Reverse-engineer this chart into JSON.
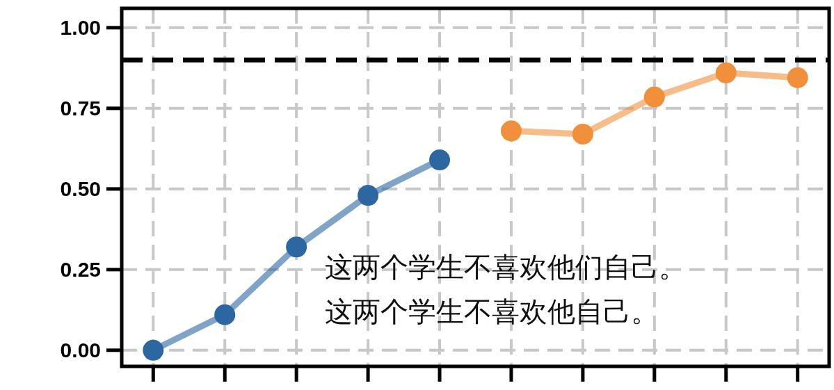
{
  "chart_data": {
    "type": "line",
    "categories": [
      null,
      null,
      null,
      null,
      null,
      null,
      null,
      null,
      null,
      null
    ],
    "series": [
      {
        "color": "#2c67a2",
        "values": [
          0,
          0.11,
          0.32,
          0.48,
          0.59,
          null,
          null,
          null,
          null,
          null
        ]
      },
      {
        "color": "#f0903a",
        "values": [
          null,
          null,
          null,
          null,
          null,
          0.68,
          0.67,
          0.785,
          0.86,
          0.845
        ]
      }
    ],
    "ylim": [
      -0.05,
      1.06
    ],
    "yticks": [
      {
        "value": 0,
        "label": "0.00"
      },
      {
        "value": 0.25,
        "label": "0.25"
      },
      {
        "value": 0.5,
        "label": "0.50"
      },
      {
        "value": 0.75,
        "label": "0.75"
      },
      {
        "value": 1,
        "label": "1.00"
      }
    ],
    "ref_lines": [
      {
        "axis": "y",
        "value": 0.9,
        "color": "#000000",
        "line_style": "dashed"
      }
    ],
    "annotations": [
      "这两个学生不喜欢他们自己。",
      "这两个学生不喜欢他自己。"
    ],
    "grid": true,
    "marker": "circle",
    "line_style": "solid",
    "tick_labels": "y"
  }
}
